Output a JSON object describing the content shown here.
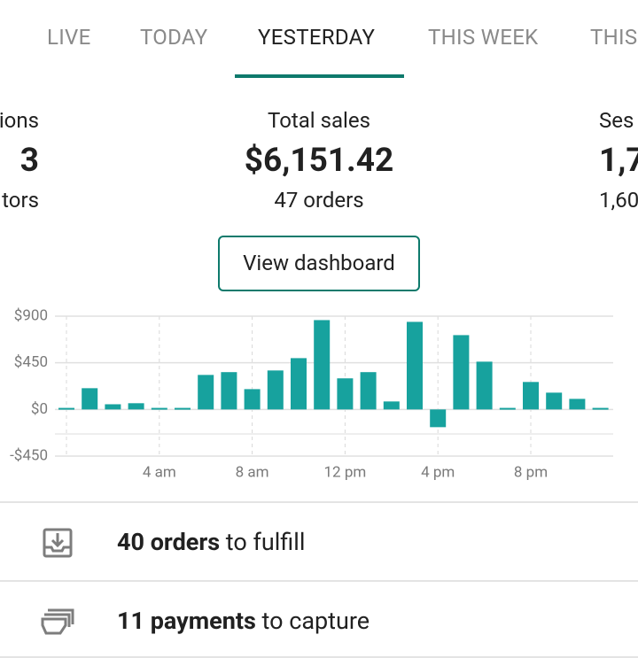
{
  "tabs": [
    "LIVE",
    "TODAY",
    "YESTERDAY",
    "THIS WEEK",
    "THIS"
  ],
  "metrics": [
    {
      "title": "ions",
      "value": "3",
      "sub": "tors"
    },
    {
      "title": "Total sales",
      "value": "$6,151.42",
      "sub": "47 orders"
    },
    {
      "title": "Ses",
      "value": "1,7",
      "sub": "1,60"
    }
  ],
  "button": "View dashboard",
  "chart_data": {
    "type": "bar",
    "categories": [
      null,
      null,
      null,
      null,
      "4 am",
      null,
      null,
      null,
      "8 am",
      null,
      null,
      null,
      "12 pm",
      null,
      null,
      null,
      "4 pm",
      null,
      null,
      null,
      "8 pm",
      null,
      null,
      null
    ],
    "values": [
      15,
      205,
      50,
      60,
      15,
      15,
      333,
      360,
      196,
      376,
      495,
      862,
      300,
      360,
      77,
      845,
      -171,
      717,
      461,
      15,
      265,
      162,
      102,
      15
    ],
    "color": "#17a29e",
    "ylim": [
      -450,
      900
    ],
    "yticks": [
      {
        "value": -450,
        "label": "-$450"
      },
      {
        "value": 0,
        "label": "$0"
      },
      {
        "value": 450,
        "label": "$450"
      },
      {
        "value": 900,
        "label": "$900"
      }
    ],
    "grid": true
  },
  "tasks": [
    {
      "bold": "40 orders",
      "rest": " to fulfill"
    },
    {
      "bold": "11 payments",
      "rest": " to capture"
    }
  ]
}
